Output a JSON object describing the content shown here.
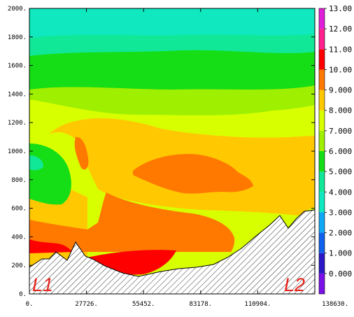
{
  "chart_data": {
    "type": "contour",
    "title": "",
    "xlabel": "",
    "ylabel": "",
    "xlim": [
      0,
      138630
    ],
    "ylim": [
      0,
      2000
    ],
    "x_ticks": [
      "0.",
      "27726.",
      "55452.",
      "83178.",
      "110904.",
      "138630."
    ],
    "y_ticks": [
      "0.",
      "200.",
      "400.",
      "600.",
      "800.",
      "1000.",
      "1200.",
      "1400.",
      "1600.",
      "1800.",
      "2000."
    ],
    "colorbar": {
      "labels": [
        "0.000",
        "1.000",
        "2.000",
        "3.000",
        "4.000",
        "5.000",
        "6.000",
        "7.000",
        "8.000",
        "9.000",
        "10.00",
        "11.00",
        "12.00",
        "13.00"
      ],
      "colors": [
        "#7a10e8",
        "#2a18c8",
        "#1060ee",
        "#10a8f6",
        "#10e8c0",
        "#10e898",
        "#16de16",
        "#9ef000",
        "#d8ff00",
        "#ffc800",
        "#ff7800",
        "#ff0000",
        "#ff2090",
        "#e020d8"
      ]
    },
    "annotations": [
      "L1",
      "L2"
    ],
    "terrain_hatched": true,
    "field_summary": [
      {
        "height": 2000,
        "level": 4
      },
      {
        "height": 1800,
        "level": 4
      },
      {
        "height": 1700,
        "level": 5
      },
      {
        "height": 1600,
        "level": 6
      },
      {
        "height": 1450,
        "level": 7
      },
      {
        "height": 1300,
        "level": 8
      },
      {
        "height": 1000,
        "level": 9
      },
      {
        "height": 750,
        "level": 10
      },
      {
        "height": 350,
        "level": 10
      },
      {
        "height": 180,
        "level": 11
      }
    ]
  }
}
